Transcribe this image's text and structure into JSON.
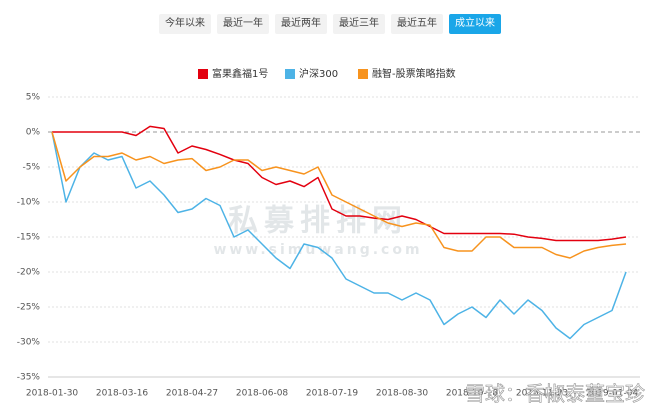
{
  "range_buttons": {
    "labels": [
      "今年以来",
      "最近一年",
      "最近两年",
      "最近三年",
      "最近五年",
      "成立以来"
    ],
    "active": 5
  },
  "watermarks": [
    "私募排排网",
    "www.simuwang.com",
    "雪球：香椒泰董宝珍"
  ],
  "chart_data": {
    "type": "line",
    "categories": [
      "2018-01-30",
      null,
      null,
      null,
      null,
      "2018-03-16",
      null,
      null,
      null,
      null,
      "2018-04-27",
      null,
      null,
      null,
      null,
      "2018-06-08",
      null,
      null,
      null,
      null,
      "2018-07-19",
      null,
      null,
      null,
      null,
      "2018-08-30",
      null,
      null,
      null,
      null,
      "2018-10-18",
      null,
      null,
      null,
      null,
      "2018-11-23",
      null,
      null,
      null,
      null,
      "2019-01-04",
      null
    ],
    "series": [
      {
        "name": "富果鑫福1号",
        "color": "#e3000f",
        "values": [
          0,
          0,
          0,
          0,
          0,
          0,
          -0.5,
          0.8,
          0.5,
          -3,
          -2,
          -2.5,
          -3.2,
          -4,
          -4.5,
          -6.5,
          -7.5,
          -7,
          -7.8,
          -6.5,
          -11,
          -12,
          -12,
          -12.3,
          -12.5,
          -12,
          -12.5,
          -13.5,
          -14.5,
          -14.5,
          -14.5,
          -14.5,
          -14.5,
          -14.6,
          -15,
          -15.2,
          -15.5,
          -15.5,
          -15.5,
          -15.5,
          -15.3,
          -15
        ]
      },
      {
        "name": "沪深300",
        "color": "#4db3e6",
        "values": [
          0,
          -10,
          -5,
          -3,
          -4,
          -3.5,
          -8,
          -7,
          -9,
          -11.5,
          -11,
          -9.5,
          -10.5,
          -15,
          -14,
          -16,
          -18,
          -19.5,
          -16,
          -16.5,
          -18,
          -21,
          -22,
          -23,
          -23,
          -24,
          -23,
          -24,
          -27.5,
          -26,
          -25,
          -26.5,
          -24,
          -26,
          -24,
          -25.5,
          -28,
          -29.5,
          -27.5,
          -26.5,
          -25.5,
          -20
        ]
      },
      {
        "name": "融智-股票策略指数",
        "color": "#f7931e",
        "values": [
          0,
          -7,
          -5,
          -3.5,
          -3.5,
          -3,
          -4,
          -3.5,
          -4.5,
          -4,
          -3.8,
          -5.5,
          -5,
          -4,
          -4,
          -5.5,
          -5,
          -5.5,
          -6,
          -5,
          -9,
          -10,
          -11,
          -12,
          -13,
          -13.5,
          -13,
          -13.3,
          -16.5,
          -17,
          -17,
          -15,
          -15,
          -16.5,
          -16.5,
          -16.5,
          -17.5,
          -18,
          -17,
          -16.5,
          -16.2,
          -16
        ]
      }
    ],
    "ylim": [
      -35,
      5
    ],
    "yticks": [
      {
        "value": -35,
        "label": "-35%"
      },
      {
        "value": -30,
        "label": "-30%"
      },
      {
        "value": -25,
        "label": "-25%"
      },
      {
        "value": -20,
        "label": "-20%"
      },
      {
        "value": -15,
        "label": "-15%"
      },
      {
        "value": -10,
        "label": "-10%"
      },
      {
        "value": -5,
        "label": "-5%"
      },
      {
        "value": 0,
        "label": "0%"
      },
      {
        "value": 5,
        "label": "5%"
      }
    ],
    "grid": true
  }
}
